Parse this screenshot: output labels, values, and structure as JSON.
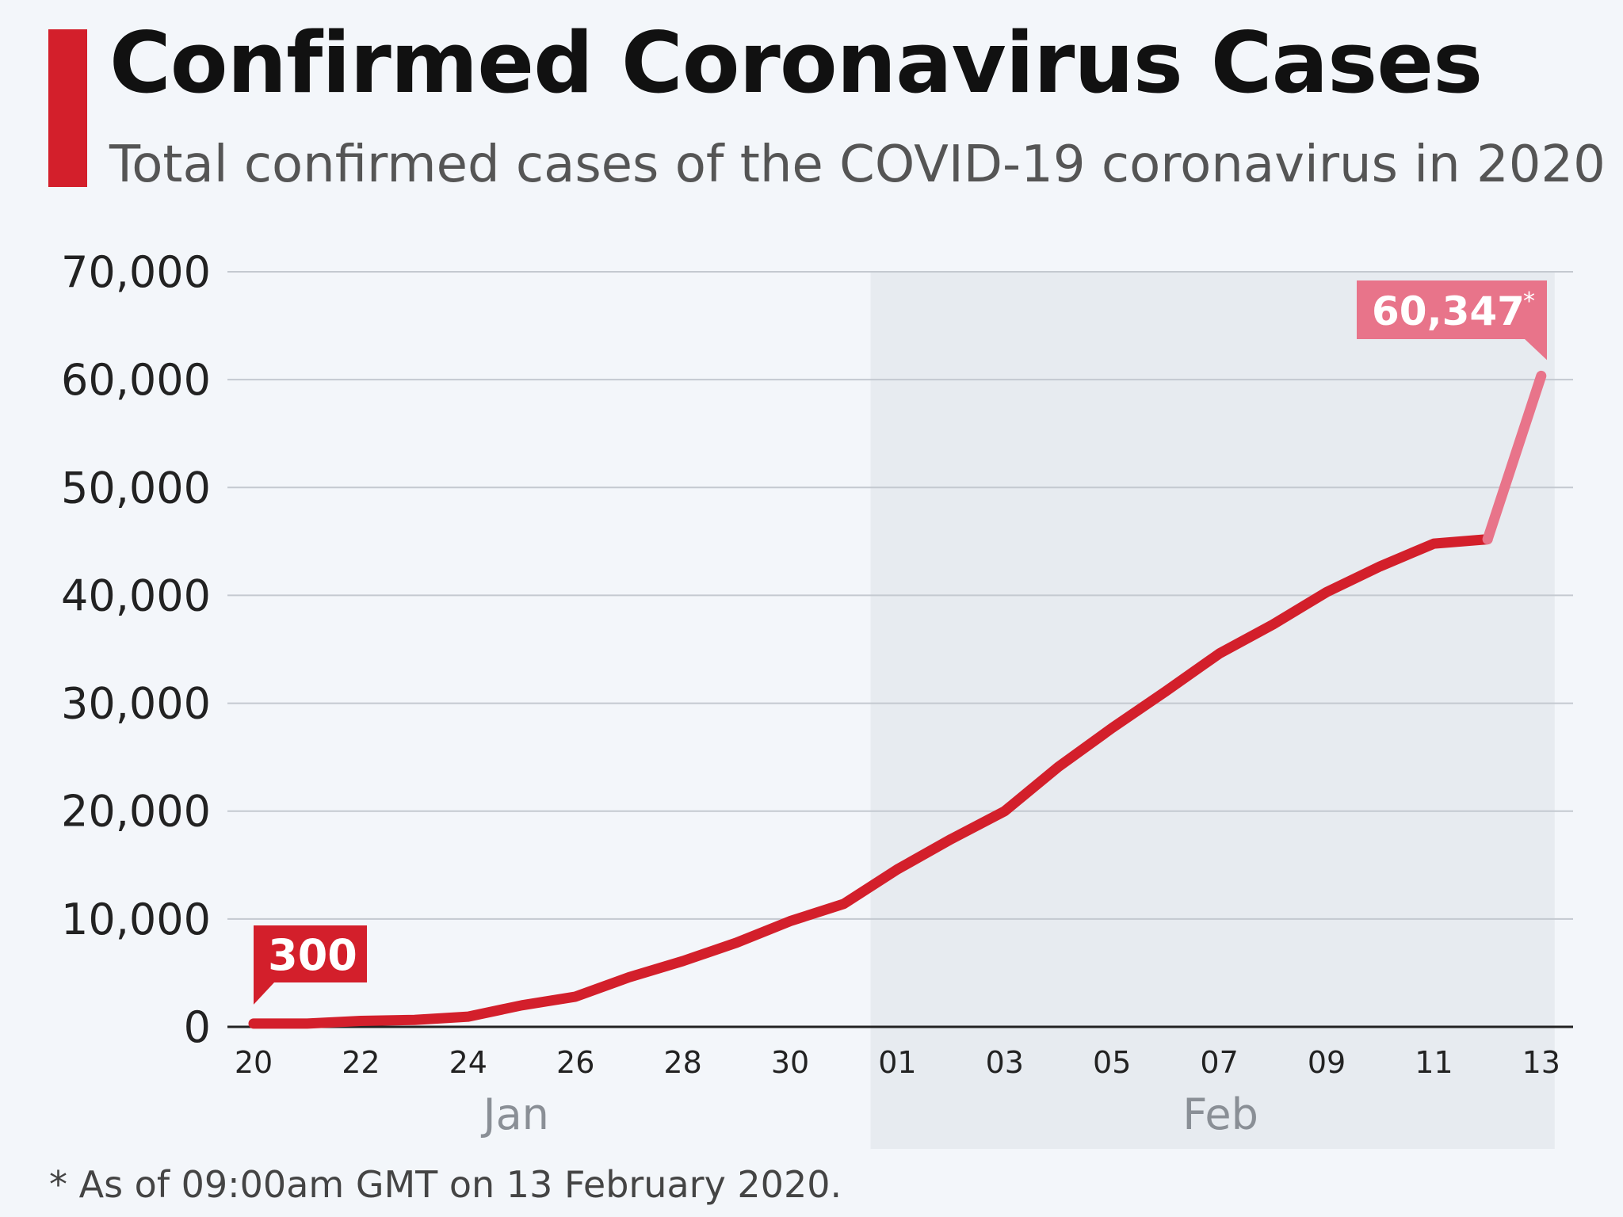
{
  "header": {
    "title": "Confirmed Coronavirus Cases",
    "subtitle": "Total confirmed cases of the COVID-19 coronavirus in 2020"
  },
  "footnote": "* As of 09:00am GMT on 13 February 2020.",
  "colors": {
    "accent": "#d31f2b",
    "line": "#d31f2b",
    "line_last": "#e8748a",
    "label_last": "#e8748a",
    "grid": "#c4c9d0",
    "shade": "#e7ebf0",
    "axis_text": "#222222",
    "month_text": "#8a8f96"
  },
  "chart_data": {
    "type": "line",
    "title": "Confirmed Coronavirus Cases",
    "subtitle": "Total confirmed cases of the COVID-19 coronavirus in 2020",
    "xlabel": "",
    "ylabel": "",
    "ylim": [
      0,
      70000
    ],
    "yticks": [
      0,
      10000,
      20000,
      30000,
      40000,
      50000,
      60000,
      70000
    ],
    "ytick_labels": [
      "0",
      "10,000",
      "20,000",
      "30,000",
      "40,000",
      "50,000",
      "60,000",
      "70,000"
    ],
    "x_tick_labels": [
      "20",
      "22",
      "24",
      "26",
      "28",
      "30",
      "01",
      "03",
      "05",
      "07",
      "09",
      "11",
      "13"
    ],
    "months": [
      {
        "label": "Jan",
        "start_day_index": 0,
        "end_day_index": 11.5
      },
      {
        "label": "Feb",
        "start_day_index": 11.5,
        "end_day_index": 24.25
      }
    ],
    "shaded_region": {
      "from_day_index": 11.5,
      "to_day_index": 24.25,
      "label": "Feb"
    },
    "grid": true,
    "series": [
      {
        "name": "Total confirmed cases",
        "days": [
          "Jan 20",
          "Jan 21",
          "Jan 22",
          "Jan 23",
          "Jan 24",
          "Jan 25",
          "Jan 26",
          "Jan 27",
          "Jan 28",
          "Jan 29",
          "Jan 30",
          "Jan 31",
          "Feb 01",
          "Feb 02",
          "Feb 03",
          "Feb 04",
          "Feb 05",
          "Feb 06",
          "Feb 07",
          "Feb 08",
          "Feb 09",
          "Feb 10",
          "Feb 11",
          "Feb 12",
          "Feb 13"
        ],
        "values": [
          300,
          300,
          550,
          650,
          950,
          2000,
          2800,
          4600,
          6100,
          7800,
          9800,
          11400,
          14600,
          17400,
          20000,
          24100,
          27700,
          31100,
          34600,
          37300,
          40300,
          42700,
          44800,
          45200,
          60347
        ]
      }
    ],
    "annotations": [
      {
        "label": "300",
        "day_index": 0,
        "value": 300,
        "style": "first"
      },
      {
        "label": "60,347",
        "suffix": "*",
        "day_index": 24,
        "value": 60347,
        "style": "last"
      }
    ]
  }
}
